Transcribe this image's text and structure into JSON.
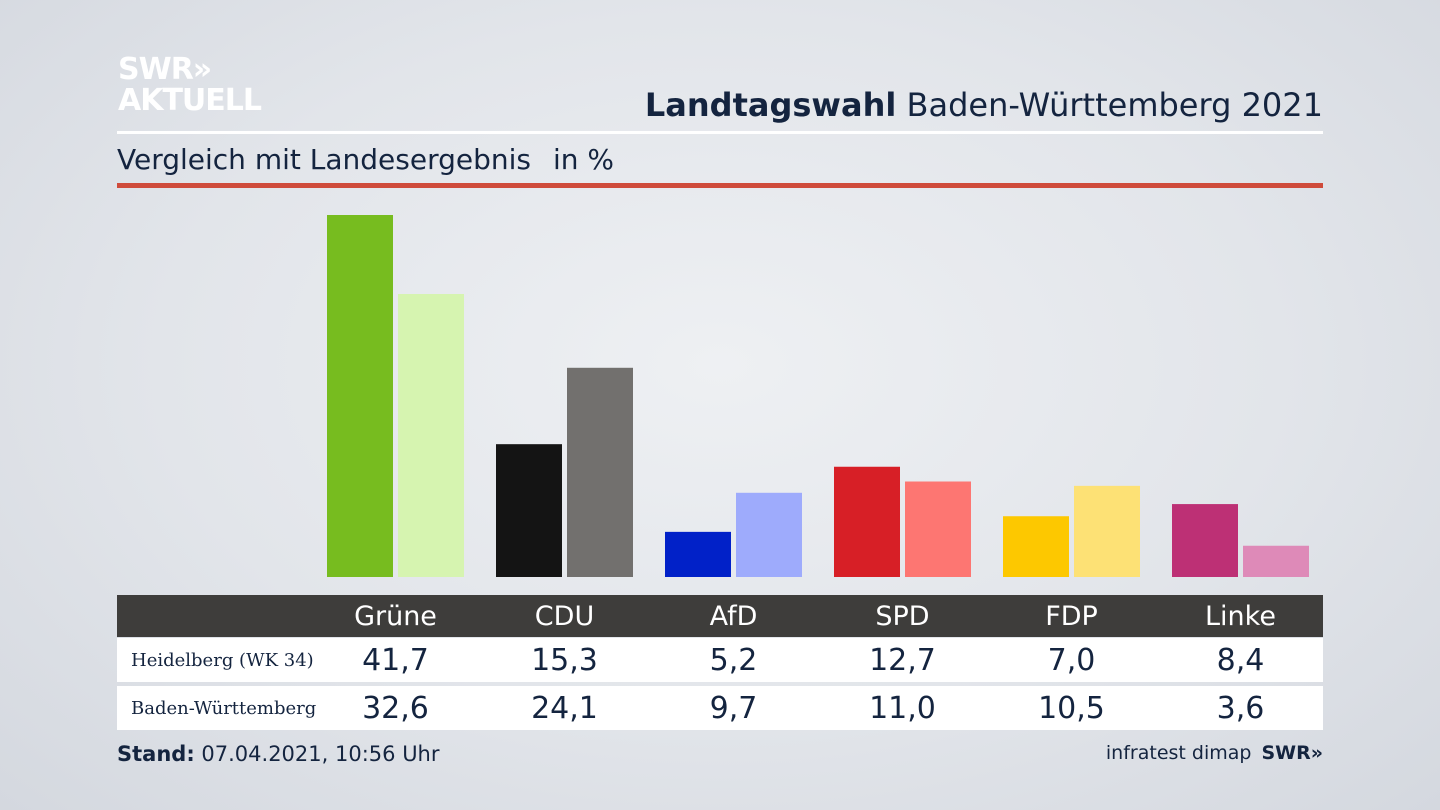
{
  "brand": {
    "logo_line1": "SWR»",
    "logo_line2": "AKTUELL",
    "footer_logo": "SWR»",
    "source": "infratest dimap"
  },
  "header": {
    "title_bold": "Landtagswahl",
    "title_rest": "Baden-Württemberg 2021",
    "subtitle": "Vergleich mit Landesergebnis",
    "unit": "in %"
  },
  "footer": {
    "stand_label": "Stand:",
    "stand_value": "07.04.2021, 10:56 Uhr"
  },
  "colors": {
    "accent_rule": "#cf4b3b",
    "table_header": "#3e3d3b"
  },
  "table": {
    "rows": [
      {
        "label": "Heidelberg (WK 34)",
        "values": [
          "41,7",
          "15,3",
          "5,2",
          "12,7",
          "7,0",
          "8,4"
        ]
      },
      {
        "label": "Baden-Württemberg",
        "values": [
          "32,6",
          "24,1",
          "9,7",
          "11,0",
          "10,5",
          "3,6"
        ]
      }
    ]
  },
  "chart_data": {
    "type": "bar",
    "categories": [
      "Grüne",
      "CDU",
      "AfD",
      "SPD",
      "FDP",
      "Linke"
    ],
    "series": [
      {
        "name": "Heidelberg (WK 34)",
        "values": [
          41.7,
          15.3,
          5.2,
          12.7,
          7.0,
          8.4
        ],
        "colors": [
          "#77bc1f",
          "#141414",
          "#0121c8",
          "#d71f26",
          "#fdc800",
          "#bd3075"
        ]
      },
      {
        "name": "Baden-Württemberg",
        "values": [
          32.6,
          24.1,
          9.7,
          11.0,
          10.5,
          3.6
        ],
        "colors": [
          "#d6f4b0",
          "#72706e",
          "#9eabfc",
          "#fd7672",
          "#fde175",
          "#de8ab8"
        ]
      }
    ],
    "ylim": [
      0,
      41.7
    ],
    "grid": false
  }
}
